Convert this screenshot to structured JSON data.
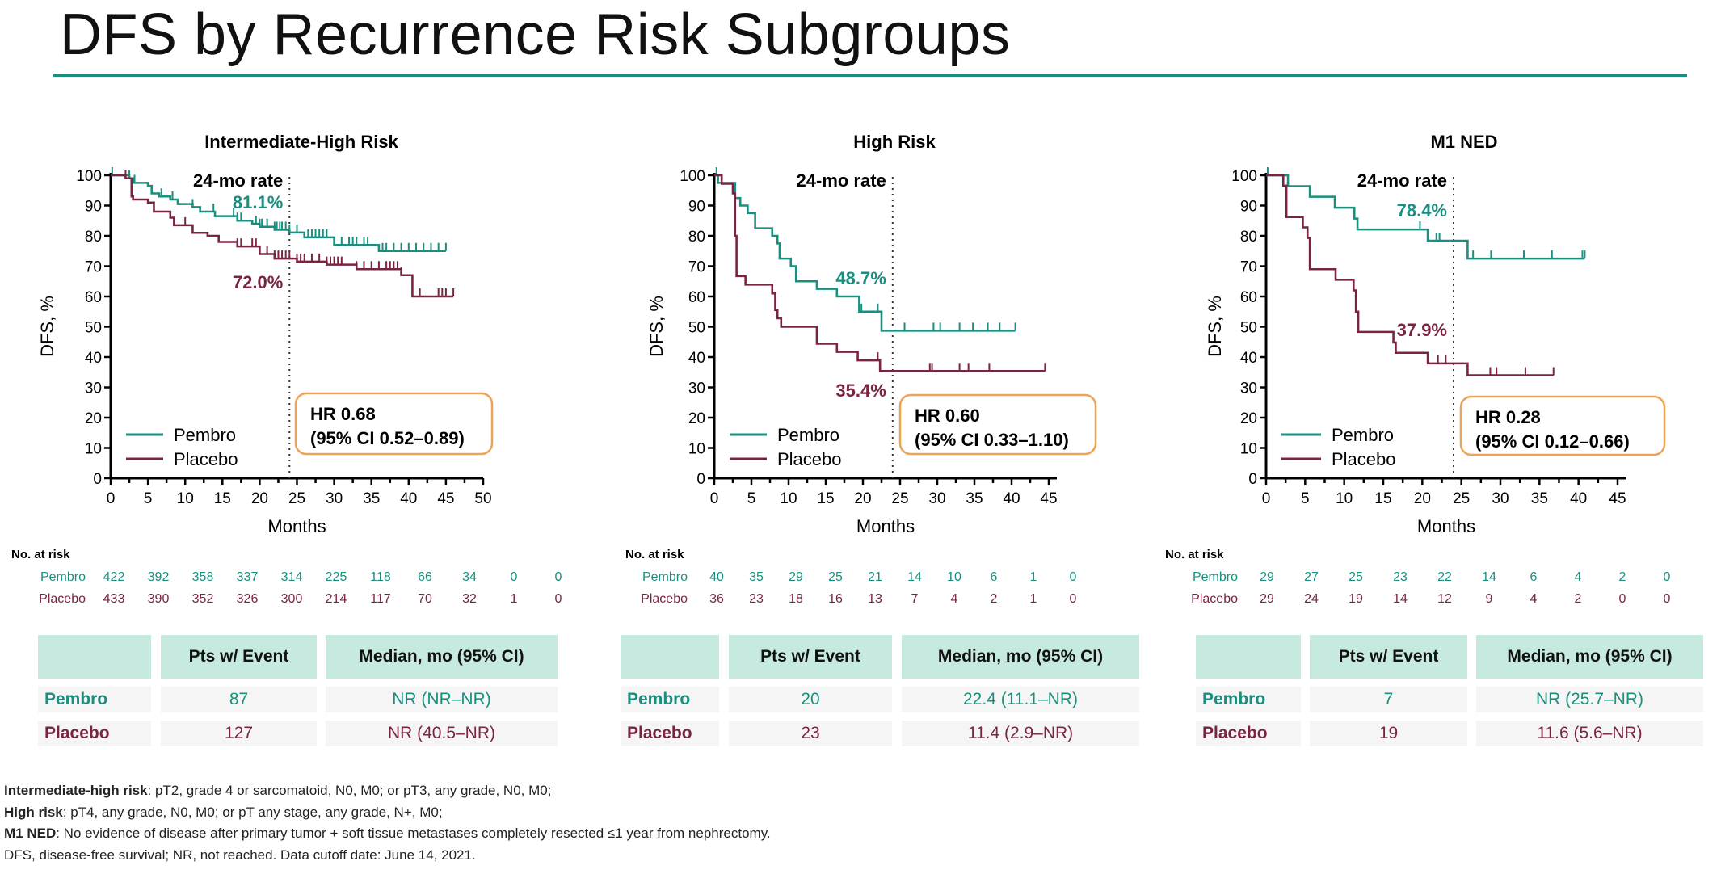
{
  "title": "DFS by Recurrence Risk Subgroups",
  "colors": {
    "pembro": "#1a8f7f",
    "placebo": "#7a2443",
    "hr_box": "#eba458",
    "accent_rule": "#1a8f7f",
    "table_header": "#c6eadf",
    "table_row": "#f5f5f5"
  },
  "chart_data": [
    {
      "type": "line",
      "title": "Intermediate-High Risk",
      "xlabel": "Months",
      "ylabel": "DFS, %",
      "xlim": [
        0,
        50
      ],
      "ylim": [
        0,
        100
      ],
      "xticks": [
        "0",
        "5",
        "10",
        "15",
        "20",
        "25",
        "30",
        "35",
        "40",
        "45",
        "50"
      ],
      "yticks": [
        "0",
        "10",
        "20",
        "30",
        "40",
        "50",
        "60",
        "70",
        "80",
        "90",
        "100"
      ],
      "grid": false,
      "legend": "bottom-left",
      "reference_line": {
        "month": 24,
        "label": "24-mo rate"
      },
      "series": [
        {
          "name": "Pembro",
          "color": "#1a8f7f",
          "rate_24mo": "81.1%",
          "end": 45,
          "points": [
            [
              0,
              100
            ],
            [
              2.5,
              99
            ],
            [
              3,
              97.5
            ],
            [
              5,
              96.5
            ],
            [
              5.5,
              94
            ],
            [
              6.5,
              93
            ],
            [
              8,
              92
            ],
            [
              9,
              90.5
            ],
            [
              11,
              89.5
            ],
            [
              12,
              88
            ],
            [
              14,
              86.5
            ],
            [
              17,
              85
            ],
            [
              19,
              84
            ],
            [
              20,
              83
            ],
            [
              22,
              82
            ],
            [
              24,
              81.1
            ],
            [
              26,
              79.5
            ],
            [
              30,
              77
            ],
            [
              36,
              75
            ]
          ],
          "censored": [
            0.2,
            2.5,
            3.2,
            5.5,
            6.8,
            8.3,
            11,
            13.8,
            16.5,
            17,
            17.5,
            19.5,
            20,
            20.3,
            21,
            22,
            22.3,
            22.7,
            23,
            23.5,
            24,
            25,
            26.5,
            27,
            27.5,
            28,
            28.5,
            29,
            30,
            31,
            32,
            32.5,
            33,
            34,
            34.5,
            36.5,
            37,
            38,
            39,
            40,
            41,
            42,
            43,
            44,
            45
          ]
        },
        {
          "name": "Placebo",
          "color": "#7a2443",
          "rate_24mo": "72.0%",
          "end": 46,
          "points": [
            [
              0,
              100
            ],
            [
              2,
              99
            ],
            [
              2.8,
              93
            ],
            [
              3,
              92
            ],
            [
              5,
              91
            ],
            [
              5.8,
              88
            ],
            [
              8,
              86
            ],
            [
              8.5,
              83.5
            ],
            [
              11,
              81
            ],
            [
              13,
              80
            ],
            [
              14.5,
              78
            ],
            [
              17,
              76.5
            ],
            [
              20,
              74
            ],
            [
              22,
              72.5
            ],
            [
              25,
              71.5
            ],
            [
              29,
              70.5
            ],
            [
              33,
              69
            ],
            [
              39,
              67
            ],
            [
              40.5,
              60
            ]
          ],
          "censored": [
            2,
            8.5,
            10,
            17,
            17.5,
            19,
            19.5,
            20,
            21,
            22,
            22.5,
            23,
            23.5,
            24,
            25,
            25.5,
            26,
            27,
            28,
            29,
            29.5,
            30,
            30.5,
            31,
            33,
            34,
            35,
            36,
            37,
            37.5,
            38,
            38.5,
            39,
            41.5,
            44,
            44.5,
            45,
            46
          ]
        }
      ],
      "hr": {
        "line1": "HR 0.68",
        "line2": "(95% CI 0.52–0.89)"
      },
      "risk_table": {
        "label": "No. at risk",
        "rows": [
          {
            "name": "Pembro",
            "values": [
              "422",
              "392",
              "358",
              "337",
              "314",
              "225",
              "118",
              "66",
              "34",
              "0",
              "0"
            ]
          },
          {
            "name": "Placebo",
            "values": [
              "433",
              "390",
              "352",
              "326",
              "300",
              "214",
              "117",
              "70",
              "32",
              "1",
              "0"
            ]
          }
        ]
      },
      "summary_table": {
        "headers": [
          "",
          "Pts w/ Event",
          "Median, mo (95% CI)"
        ],
        "rows": [
          {
            "name": "Pembro",
            "events": "87",
            "median": "NR (NR–NR)"
          },
          {
            "name": "Placebo",
            "events": "127",
            "median": "NR (40.5–NR)"
          }
        ]
      }
    },
    {
      "type": "line",
      "title": "High Risk",
      "xlabel": "Months",
      "ylabel": "DFS, %",
      "xlim": [
        0,
        45
      ],
      "ylim": [
        0,
        100
      ],
      "xticks": [
        "0",
        "5",
        "10",
        "15",
        "20",
        "25",
        "30",
        "35",
        "40",
        "45"
      ],
      "yticks": [
        "0",
        "10",
        "20",
        "30",
        "40",
        "50",
        "60",
        "70",
        "80",
        "90",
        "100"
      ],
      "grid": false,
      "legend": "bottom-left",
      "reference_line": {
        "month": 24,
        "label": "24-mo rate"
      },
      "series": [
        {
          "name": "Pembro",
          "color": "#1a8f7f",
          "rate_24mo": "48.7%",
          "end": 40.5,
          "points": [
            [
              0,
              100
            ],
            [
              0.5,
              97.5
            ],
            [
              2.8,
              92.5
            ],
            [
              3.5,
              90
            ],
            [
              4.5,
              87.5
            ],
            [
              5.5,
              82.5
            ],
            [
              7.8,
              80
            ],
            [
              8.5,
              77.5
            ],
            [
              8.8,
              72.5
            ],
            [
              10.3,
              70
            ],
            [
              11,
              65
            ],
            [
              13.8,
              62.5
            ],
            [
              16.5,
              60
            ],
            [
              19.5,
              55
            ],
            [
              22.5,
              48.7
            ]
          ],
          "censored": [
            0.3,
            19.8,
            22,
            25.6,
            29.5,
            30.4,
            33,
            34.8,
            36.8,
            38.4,
            40.5
          ]
        },
        {
          "name": "Placebo",
          "color": "#7a2443",
          "rate_24mo": "35.4%",
          "end": 44.5,
          "points": [
            [
              0,
              100
            ],
            [
              1,
              97.2
            ],
            [
              2.5,
              94
            ],
            [
              2.8,
              80
            ],
            [
              3,
              66.7
            ],
            [
              4.2,
              63.9
            ],
            [
              7.8,
              61
            ],
            [
              8.2,
              55.5
            ],
            [
              8.5,
              52.8
            ],
            [
              9,
              50
            ],
            [
              13.8,
              44.4
            ],
            [
              16.5,
              41.7
            ],
            [
              19.3,
              38.9
            ],
            [
              22.3,
              35.4
            ]
          ],
          "censored": [
            1,
            22,
            29,
            29.3,
            33,
            34.2,
            37,
            44.5
          ]
        }
      ],
      "hr": {
        "line1": "HR 0.60",
        "line2": "(95% CI 0.33–1.10)"
      },
      "risk_table": {
        "label": "No. at risk",
        "rows": [
          {
            "name": "Pembro",
            "values": [
              "40",
              "35",
              "29",
              "25",
              "21",
              "14",
              "10",
              "6",
              "1",
              "0"
            ]
          },
          {
            "name": "Placebo",
            "values": [
              "36",
              "23",
              "18",
              "16",
              "13",
              "7",
              "4",
              "2",
              "1",
              "0"
            ]
          }
        ]
      },
      "summary_table": {
        "headers": [
          "",
          "Pts w/ Event",
          "Median, mo (95% CI)"
        ],
        "rows": [
          {
            "name": "Pembro",
            "events": "20",
            "median": "22.4 (11.1–NR)"
          },
          {
            "name": "Placebo",
            "events": "23",
            "median": "11.4 (2.9–NR)"
          }
        ]
      }
    },
    {
      "type": "line",
      "title": "M1 NED",
      "xlabel": "Months",
      "ylabel": "DFS, %",
      "xlim": [
        0,
        45
      ],
      "ylim": [
        0,
        100
      ],
      "xticks": [
        "0",
        "5",
        "10",
        "15",
        "20",
        "25",
        "30",
        "35",
        "40",
        "45"
      ],
      "yticks": [
        "0",
        "10",
        "20",
        "30",
        "40",
        "50",
        "60",
        "70",
        "80",
        "90",
        "100"
      ],
      "grid": false,
      "legend": "bottom-left",
      "reference_line": {
        "month": 24,
        "label": "24-mo rate"
      },
      "series": [
        {
          "name": "Pembro",
          "color": "#1a8f7f",
          "rate_24mo": "78.4%",
          "end": 40.8,
          "points": [
            [
              0,
              100
            ],
            [
              2.8,
              96.4
            ],
            [
              5.6,
              92.9
            ],
            [
              8.8,
              89.3
            ],
            [
              11.3,
              85.7
            ],
            [
              11.7,
              82.1
            ],
            [
              20.7,
              78.4
            ],
            [
              25.8,
              72.5
            ]
          ],
          "censored": [
            0.2,
            19.7,
            21.8,
            22.2,
            26.5,
            28.8,
            33,
            36.6,
            40.5,
            40.8
          ]
        },
        {
          "name": "Placebo",
          "color": "#7a2443",
          "rate_24mo": "37.9%",
          "end": 36.8,
          "points": [
            [
              0,
              100
            ],
            [
              2.2,
              96.6
            ],
            [
              2.6,
              86.2
            ],
            [
              4.7,
              82.8
            ],
            [
              5.3,
              79.3
            ],
            [
              5.6,
              69
            ],
            [
              8.9,
              65.5
            ],
            [
              11.2,
              62
            ],
            [
              11.5,
              55
            ],
            [
              11.8,
              48.3
            ],
            [
              16.3,
              44.8
            ],
            [
              16.6,
              41.4
            ],
            [
              20.7,
              37.9
            ],
            [
              25.8,
              34
            ]
          ],
          "censored": [
            22,
            23,
            28.7,
            29.5,
            33.2,
            36.8
          ]
        }
      ],
      "hr": {
        "line1": "HR 0.28",
        "line2": "(95% CI 0.12–0.66)"
      },
      "risk_table": {
        "label": "No. at risk",
        "rows": [
          {
            "name": "Pembro",
            "values": [
              "29",
              "27",
              "25",
              "23",
              "22",
              "14",
              "6",
              "4",
              "2",
              "0"
            ]
          },
          {
            "name": "Placebo",
            "values": [
              "29",
              "24",
              "19",
              "14",
              "12",
              "9",
              "4",
              "2",
              "0",
              "0"
            ]
          }
        ]
      },
      "summary_table": {
        "headers": [
          "",
          "Pts w/ Event",
          "Median, mo (95% CI)"
        ],
        "rows": [
          {
            "name": "Pembro",
            "events": "7",
            "median": "NR (25.7–NR)"
          },
          {
            "name": "Placebo",
            "events": "19",
            "median": "11.6 (5.6–NR)"
          }
        ]
      }
    }
  ],
  "footnotes": [
    {
      "term": "Intermediate-high risk",
      "text": ": pT2, grade 4 or sarcomatoid, N0, M0; or pT3, any grade, N0, M0;"
    },
    {
      "term": "High risk",
      "text": ": pT4, any grade, N0, M0; or pT any stage, any grade, N+, M0;"
    },
    {
      "term": "M1 NED",
      "text": ": No evidence of disease after primary tumor + soft tissue metastases completely resected ≤1 year from nephrectomy."
    },
    {
      "term": "",
      "text": "DFS, disease-free survival; NR, not reached. Data cutoff date: June 14, 2021."
    }
  ]
}
